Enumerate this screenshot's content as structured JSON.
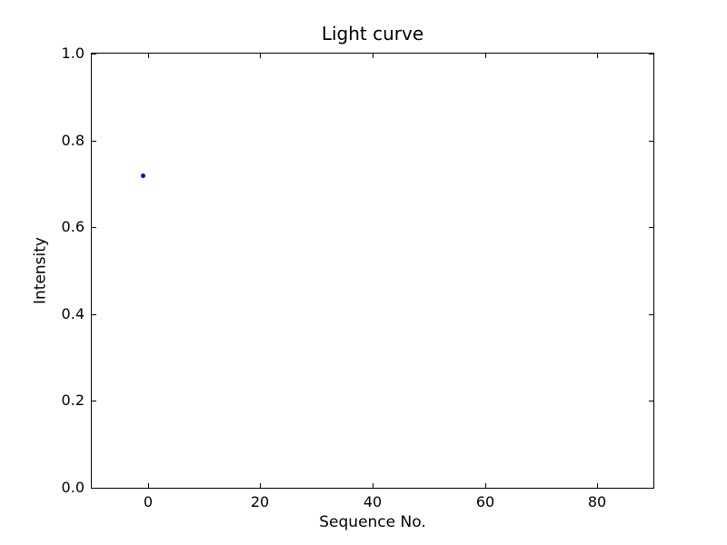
{
  "figure": {
    "background_color": "#ffffff",
    "axis_color": "#000000"
  },
  "chart_data": {
    "type": "scatter",
    "title": "Light curve",
    "xlabel": "Sequence No.",
    "ylabel": "Intensity",
    "xlim": [
      -10,
      90
    ],
    "ylim": [
      0.0,
      1.0
    ],
    "xticks": [
      {
        "value": 0,
        "label": "0"
      },
      {
        "value": 20,
        "label": "20"
      },
      {
        "value": 40,
        "label": "40"
      },
      {
        "value": 60,
        "label": "60"
      },
      {
        "value": 80,
        "label": "80"
      }
    ],
    "yticks": [
      {
        "value": 0.0,
        "label": "0.0"
      },
      {
        "value": 0.2,
        "label": "0.2"
      },
      {
        "value": 0.4,
        "label": "0.4"
      },
      {
        "value": 0.6,
        "label": "0.6"
      },
      {
        "value": 0.8,
        "label": "0.8"
      },
      {
        "value": 1.0,
        "label": "1.0"
      }
    ],
    "grid": false,
    "legend": false,
    "tick_direction": "in",
    "ticks_on_all_sides": true,
    "series": [
      {
        "name": "intensity-points",
        "marker": "dot",
        "marker_color": "#0000ff",
        "marker_size_px": 5,
        "points": [
          {
            "x": -1,
            "y": 0.72
          }
        ]
      }
    ]
  }
}
